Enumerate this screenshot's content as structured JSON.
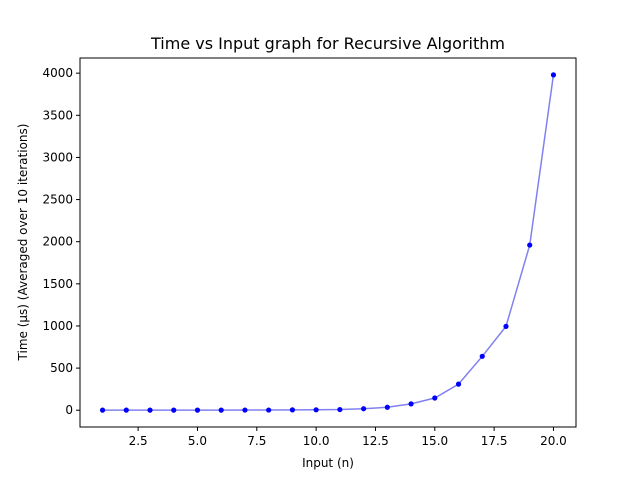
{
  "chart_data": {
    "type": "line",
    "title": "Time vs Input graph for Recursive Algorithm",
    "xlabel": "Input (n)",
    "ylabel": "Time (µs) (Averaged over 10 iterations)",
    "xlim": [
      0.05,
      20.95
    ],
    "ylim": [
      -199,
      4180
    ],
    "xticks": [
      2.5,
      5.0,
      7.5,
      10.0,
      12.5,
      15.0,
      17.5,
      20.0
    ],
    "xtick_labels": [
      "2.5",
      "5.0",
      "7.5",
      "10.0",
      "12.5",
      "15.0",
      "17.5",
      "20.0"
    ],
    "yticks": [
      0,
      500,
      1000,
      1500,
      2000,
      2500,
      3000,
      3500,
      4000
    ],
    "ytick_labels": [
      "0",
      "500",
      "1000",
      "1500",
      "2000",
      "2500",
      "3000",
      "3500",
      "4000"
    ],
    "grid": false,
    "series": [
      {
        "line_color": "#8080f0",
        "marker_color": "#0000ff",
        "x": [
          1,
          2,
          3,
          4,
          5,
          6,
          7,
          8,
          9,
          10,
          11,
          12,
          13,
          14,
          15,
          16,
          17,
          18,
          19,
          20
        ],
        "y": [
          1,
          1,
          1,
          1,
          1,
          1,
          2,
          2,
          4,
          5,
          8,
          18,
          35,
          75,
          145,
          310,
          640,
          995,
          1960,
          3980
        ]
      }
    ]
  }
}
